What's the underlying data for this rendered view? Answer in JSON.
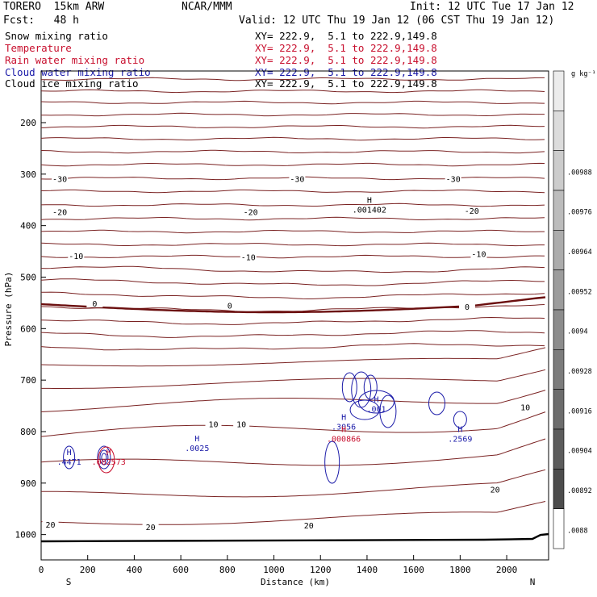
{
  "header": {
    "model": "TORERO  15km ARW",
    "org": "NCAR/MMM",
    "init": "Init: 12 UTC Tue 17 Jan 12",
    "fcst": "Fcst:   48 h",
    "valid": "Valid: 12 UTC Thu 19 Jan 12 (06 CST Thu 19 Jan 12)"
  },
  "legend": [
    {
      "name": "Snow mixing ratio",
      "xy": "XY= 222.9,  5.1 to 222.9,149.8",
      "color": "#000000"
    },
    {
      "name": "Temperature",
      "xy": "XY= 222.9,  5.1 to 222.9,149.8",
      "color": "#c8102e"
    },
    {
      "name": "Rain water mixing ratio",
      "xy": "XY= 222.9,  5.1 to 222.9,149.8",
      "color": "#c8102e"
    },
    {
      "name": "Cloud water mixing ratio",
      "xy": "XY= 222.9,  5.1 to 222.9,149.8",
      "color": "#1a1aa8"
    },
    {
      "name": "Cloud ice mixing ratio",
      "xy": "XY= 222.9,  5.1 to 222.9,149.8",
      "color": "#000000"
    }
  ],
  "chart_data": {
    "type": "line",
    "xlabel": "Distance (km)",
    "ylabel": "Pressure (hPa)",
    "xlim": [
      0,
      2180
    ],
    "ylim": [
      1050,
      100
    ],
    "x_ticks": [
      0,
      200,
      400,
      600,
      800,
      1000,
      1200,
      1400,
      1600,
      1800,
      2000
    ],
    "y_ticks": [
      200,
      300,
      400,
      500,
      600,
      700,
      800,
      900,
      1000
    ],
    "x_end_labels": {
      "left": "S",
      "right": "N"
    },
    "colorbar": {
      "unit": "g kg⁻¹",
      "labels": [
        ".0088",
        ".00892",
        ".00904",
        ".00916",
        ".00928",
        ".0094",
        ".00952",
        ".00964",
        ".00976",
        ".00988"
      ]
    },
    "temperature_labels": [
      {
        "value": "-30",
        "x": 80,
        "p": 312
      },
      {
        "value": "-30",
        "x": 1100,
        "p": 312
      },
      {
        "value": "-30",
        "x": 1770,
        "p": 312
      },
      {
        "value": "-20",
        "x": 80,
        "p": 376
      },
      {
        "value": "-20",
        "x": 900,
        "p": 376
      },
      {
        "value": "-20",
        "x": 1850,
        "p": 374
      },
      {
        "value": "-10",
        "x": 150,
        "p": 462
      },
      {
        "value": "-10",
        "x": 890,
        "p": 464
      },
      {
        "value": "-10",
        "x": 1880,
        "p": 458
      },
      {
        "value": "0",
        "x": 230,
        "p": 554
      },
      {
        "value": "0",
        "x": 810,
        "p": 558
      },
      {
        "value": "0",
        "x": 1830,
        "p": 560
      },
      {
        "value": "10",
        "x": 740,
        "p": 788
      },
      {
        "value": "10",
        "x": 860,
        "p": 788
      },
      {
        "value": "10",
        "x": 2080,
        "p": 755
      },
      {
        "value": "20",
        "x": 1950,
        "p": 915
      },
      {
        "value": "20",
        "x": 40,
        "p": 983
      },
      {
        "value": "20",
        "x": 470,
        "p": 988
      },
      {
        "value": "20",
        "x": 1150,
        "p": 985
      }
    ],
    "extrema": [
      {
        "label": "H",
        "value": ".001402",
        "x": 1410,
        "p": 365,
        "color": "#000000"
      },
      {
        "label": "H",
        "value": ".0025",
        "x": 670,
        "p": 828,
        "color": "#1a1aa8"
      },
      {
        "label": "H",
        "value": ".4471",
        "x": 120,
        "p": 855,
        "color": "#1a1aa8"
      },
      {
        "label": "H",
        "value": ".002573",
        "x": 290,
        "p": 855,
        "color": "#c8102e"
      },
      {
        "label": "H",
        "value": ".3056",
        "x": 1300,
        "p": 787,
        "color": "#1a1aa8"
      },
      {
        "label": "H",
        "value": ".001",
        "x": 1440,
        "p": 752,
        "color": "#1a1aa8"
      },
      {
        "label": "H",
        "value": ".000866",
        "x": 1300,
        "p": 810,
        "color": "#c8102e"
      },
      {
        "label": "H",
        "value": ".2569",
        "x": 1800,
        "p": 810,
        "color": "#1a1aa8"
      }
    ]
  }
}
